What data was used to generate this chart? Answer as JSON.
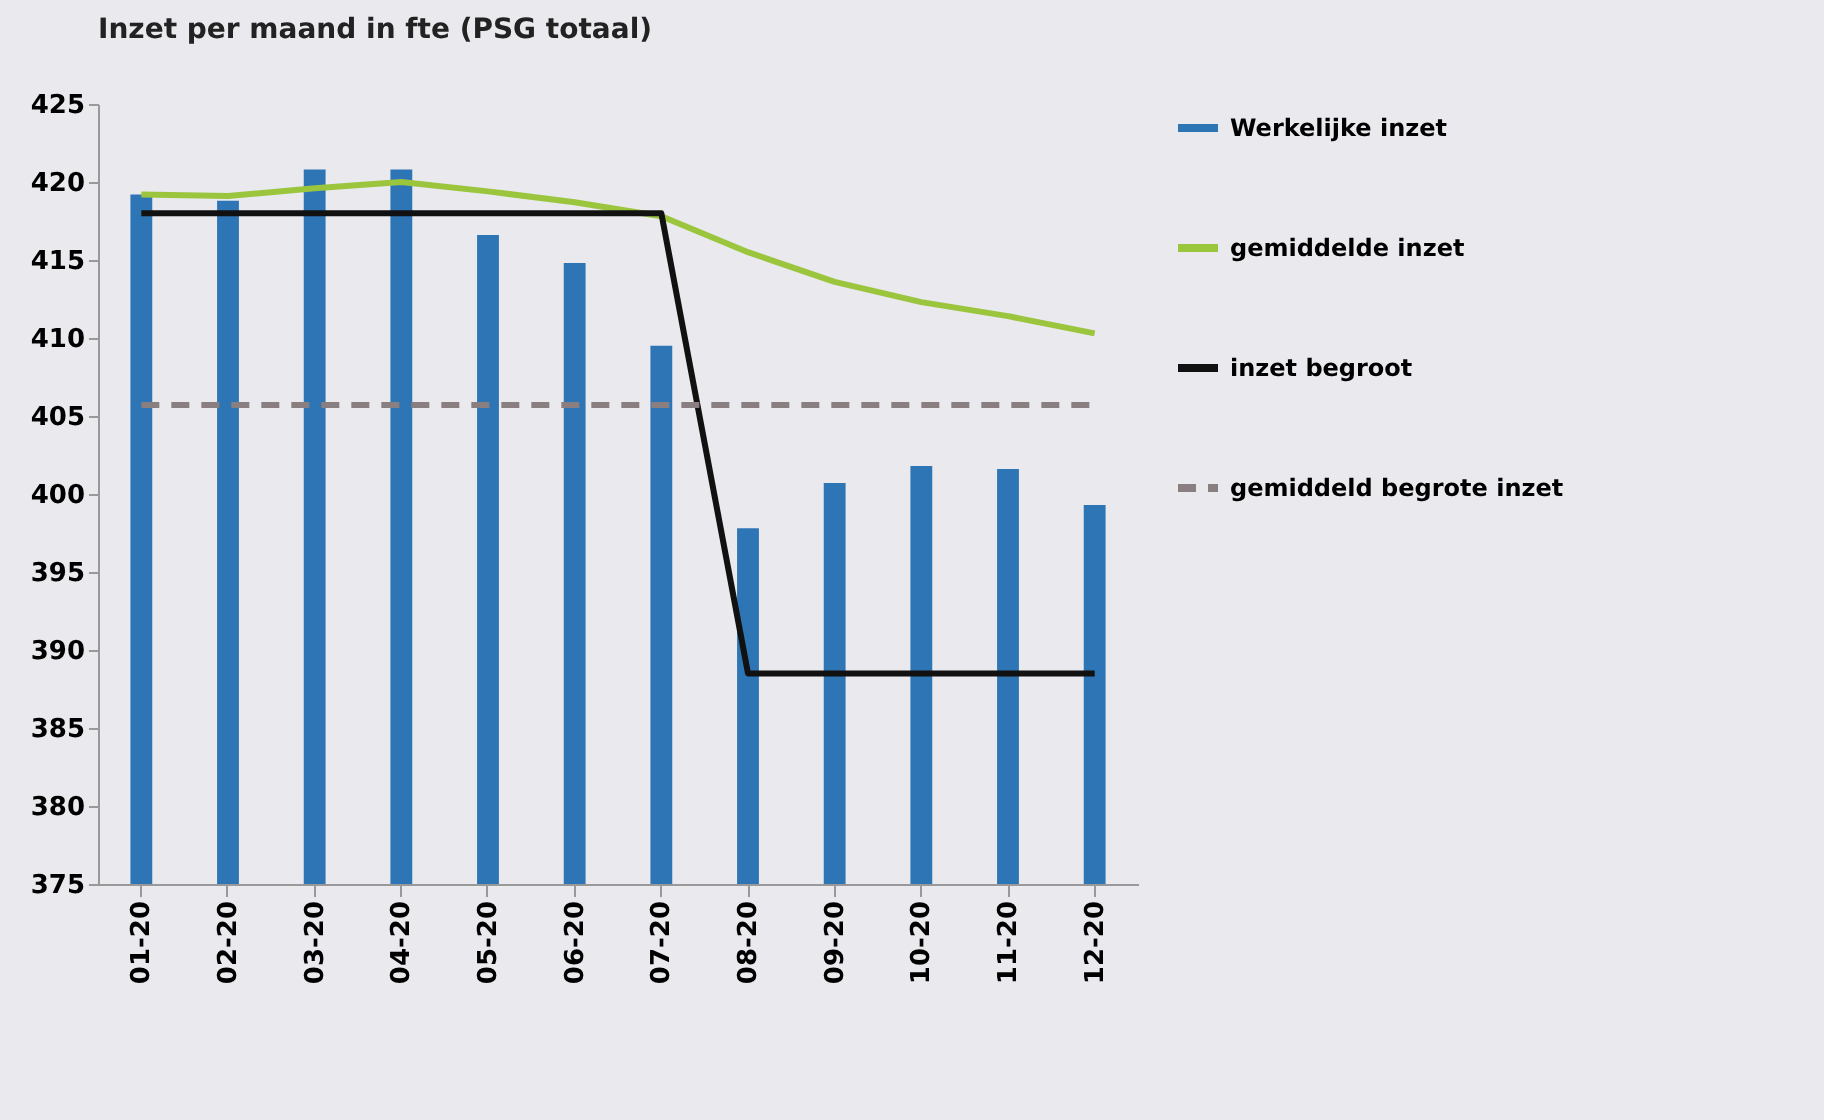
{
  "chart_data": {
    "type": "bar",
    "title": "Inzet per maand in fte (PSG totaal)",
    "categories": [
      "01-20",
      "02-20",
      "03-20",
      "04-20",
      "05-20",
      "06-20",
      "07-20",
      "08-20",
      "09-20",
      "10-20",
      "11-20",
      "12-20"
    ],
    "series": [
      {
        "name": "Werkelijke inzet",
        "color": "#2e75b6",
        "values": [
          419.2,
          418.8,
          420.8,
          420.8,
          416.6,
          414.8,
          409.5,
          397.8,
          400.7,
          401.8,
          401.6,
          399.3
        ]
      },
      {
        "name": "gemiddelde inzet",
        "type": "line",
        "color": "#9bc53d",
        "line_style": "solid",
        "values": [
          419.2,
          419.1,
          419.6,
          420.0,
          419.4,
          418.7,
          417.8,
          415.5,
          413.6,
          412.3,
          411.4,
          410.3
        ]
      },
      {
        "name": "inzet begroot",
        "type": "line",
        "color": "#111111",
        "line_style": "solid",
        "values": [
          418,
          418,
          418,
          418,
          418,
          418,
          418,
          388.5,
          388.5,
          388.5,
          388.5,
          388.5
        ]
      },
      {
        "name": "gemiddeld begrote inzet",
        "type": "line",
        "color": "#8a7f80",
        "line_style": "dashed",
        "values": [
          405.7,
          405.7,
          405.7,
          405.7,
          405.7,
          405.7,
          405.7,
          405.7,
          405.7,
          405.7,
          405.7,
          405.7
        ]
      }
    ],
    "ylim": [
      375,
      425
    ],
    "yticks": [
      375,
      380,
      385,
      390,
      395,
      400,
      405,
      410,
      415,
      420,
      425
    ],
    "legend": "right"
  }
}
